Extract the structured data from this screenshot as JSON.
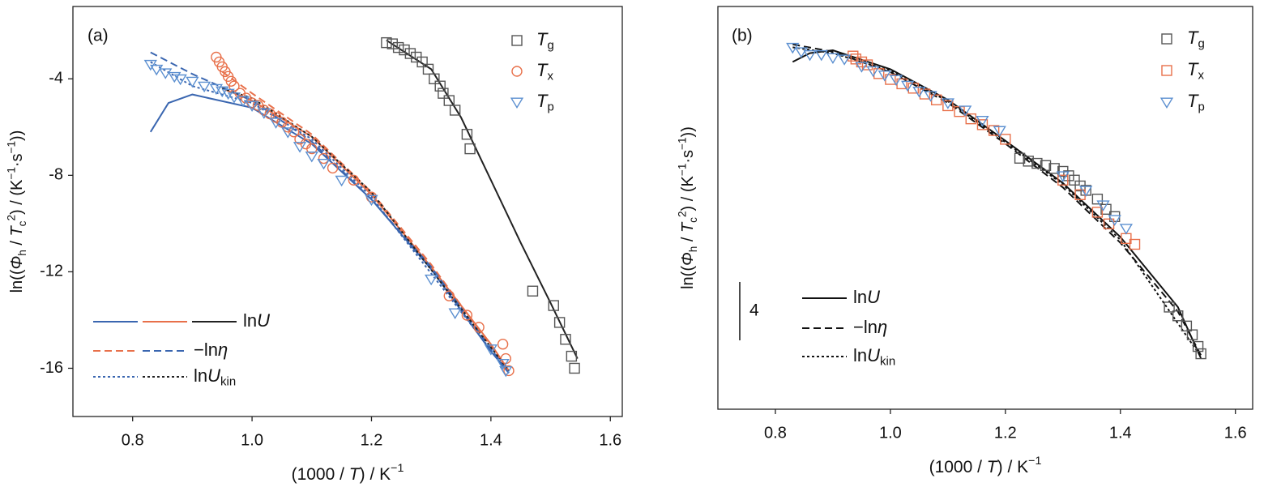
{
  "chart_data": [
    {
      "type": "scatter",
      "label": "(a)",
      "xlabel": [
        [
          "(1000 / ",
          ""
        ],
        [
          "T",
          "i"
        ],
        [
          ") / K",
          ""
        ],
        [
          "−1",
          "sup"
        ]
      ],
      "ylabel": [
        [
          "ln((",
          ""
        ],
        [
          "Φ",
          "i"
        ],
        [
          "h",
          "sub"
        ],
        [
          " / ",
          ""
        ],
        [
          "T",
          "i"
        ],
        [
          "c",
          "sub"
        ],
        [
          "2",
          "sup"
        ],
        [
          ") / (K",
          ""
        ],
        [
          "−1",
          "sup"
        ],
        [
          "·s",
          ""
        ],
        [
          "−1",
          "sup"
        ],
        [
          "))",
          ""
        ]
      ],
      "xlim": [
        0.7,
        1.62
      ],
      "ylim": [
        -18,
        -1
      ],
      "xticks": [
        0.8,
        {
          "value": 1,
          "label": "1.0"
        },
        1.2,
        1.4,
        1.6
      ],
      "yticks": [
        -4,
        -8,
        -12,
        -16
      ],
      "scatter": [
        {
          "name": [
            [
              "T",
              "i"
            ],
            [
              "g",
              "sub"
            ]
          ],
          "marker": "square",
          "color": "#555555",
          "x": [
            1.225,
            1.235,
            1.245,
            1.255,
            1.265,
            1.275,
            1.285,
            1.295,
            1.305,
            1.315,
            1.32,
            1.33,
            1.34,
            1.36,
            1.365,
            1.47,
            1.505,
            1.515,
            1.525,
            1.535,
            1.54
          ],
          "y": [
            -2.5,
            -2.55,
            -2.7,
            -2.8,
            -2.95,
            -3.1,
            -3.3,
            -3.6,
            -4.0,
            -4.3,
            -4.6,
            -4.9,
            -5.3,
            -6.3,
            -6.9,
            -12.8,
            -13.4,
            -14.1,
            -14.8,
            -15.5,
            -16.0
          ]
        },
        {
          "name": [
            [
              "T",
              "i"
            ],
            [
              "x",
              "sub"
            ]
          ],
          "marker": "circle",
          "color": "#e8704a",
          "x": [
            0.94,
            0.945,
            0.95,
            0.955,
            0.96,
            0.965,
            0.97,
            0.98,
            0.99,
            1.0,
            1.01,
            1.02,
            1.03,
            1.04,
            1.05,
            1.06,
            1.07,
            1.08,
            1.09,
            1.1,
            1.12,
            1.135,
            1.17,
            1.2,
            1.33,
            1.36,
            1.38,
            1.42,
            1.425,
            1.43
          ],
          "y": [
            -3.1,
            -3.3,
            -3.5,
            -3.7,
            -3.9,
            -4.1,
            -4.3,
            -4.6,
            -4.8,
            -5.0,
            -5.1,
            -5.3,
            -5.45,
            -5.6,
            -5.8,
            -6.0,
            -6.2,
            -6.5,
            -6.7,
            -6.9,
            -7.3,
            -7.7,
            -8.2,
            -8.9,
            -13.0,
            -13.8,
            -14.3,
            -15.0,
            -15.6,
            -16.1
          ]
        },
        {
          "name": [
            [
              "T",
              "i"
            ],
            [
              "p",
              "sub"
            ]
          ],
          "marker": "triangle",
          "color": "#5b8fd0",
          "x": [
            0.83,
            0.84,
            0.855,
            0.87,
            0.88,
            0.9,
            0.92,
            0.94,
            0.95,
            0.96,
            0.97,
            0.985,
            1.0,
            1.02,
            1.04,
            1.06,
            1.08,
            1.1,
            1.12,
            1.15,
            1.2,
            1.3,
            1.34,
            1.4,
            1.42,
            1.425
          ],
          "y": [
            -3.4,
            -3.6,
            -3.75,
            -3.9,
            -4.0,
            -4.1,
            -4.3,
            -4.4,
            -4.5,
            -4.6,
            -4.75,
            -4.9,
            -5.1,
            -5.4,
            -5.8,
            -6.2,
            -6.8,
            -7.2,
            -7.5,
            -8.2,
            -9.0,
            -12.3,
            -13.7,
            -15.2,
            -15.8,
            -16.1
          ]
        }
      ],
      "line_groups": [
        {
          "name": [
            [
              "ln",
              ""
            ],
            [
              "U",
              "i"
            ]
          ],
          "dash": "solid",
          "lines": [
            {
              "color": "#3a66b0",
              "x": [
                0.83,
                0.86,
                0.9,
                1.0,
                1.1,
                1.2,
                1.3,
                1.4,
                1.43
              ],
              "y": [
                -6.2,
                -5.0,
                -4.65,
                -5.2,
                -6.7,
                -9.0,
                -11.9,
                -15.3,
                -16.2
              ]
            },
            {
              "color": "#e8704a",
              "x": [
                0.95,
                1.0,
                1.1,
                1.2,
                1.3,
                1.4,
                1.43
              ],
              "y": [
                -4.4,
                -4.9,
                -6.4,
                -8.8,
                -11.8,
                -15.0,
                -16.1
              ]
            },
            {
              "color": "#222222",
              "x": [
                1.225,
                1.3,
                1.35,
                1.4,
                1.45,
                1.5,
                1.545
              ],
              "y": [
                -2.4,
                -3.6,
                -5.6,
                -8.2,
                -10.8,
                -13.3,
                -15.6
              ]
            }
          ]
        },
        {
          "name": [
            [
              "−ln",
              ""
            ],
            [
              "η",
              "i"
            ]
          ],
          "dash": "dashed",
          "lines": [
            {
              "color": "#e8704a",
              "x": [
                0.95,
                1.0,
                1.1,
                1.2,
                1.3,
                1.43
              ],
              "y": [
                -3.7,
                -4.6,
                -6.3,
                -8.7,
                -11.7,
                -16.1
              ]
            },
            {
              "color": "#3a66b0",
              "x": [
                0.83,
                0.9,
                1.0,
                1.1,
                1.2,
                1.3,
                1.43
              ],
              "y": [
                -2.9,
                -3.8,
                -4.9,
                -6.6,
                -9.0,
                -11.8,
                -16.2
              ]
            }
          ]
        },
        {
          "name": [
            [
              "ln",
              ""
            ],
            [
              "U",
              "i"
            ],
            [
              "kin",
              "sub"
            ]
          ],
          "dash": "dotted",
          "lines": [
            {
              "color": "#3a66b0",
              "x": [
                0.83,
                0.9,
                1.0,
                1.1,
                1.2,
                1.43
              ],
              "y": [
                -3.3,
                -4.3,
                -5.0,
                -6.5,
                -8.9,
                -16.2
              ]
            },
            {
              "color": "#222222",
              "x": [
                0.95,
                1.0,
                1.1,
                1.2,
                1.43
              ],
              "y": [
                -4.4,
                -4.8,
                -6.4,
                -8.7,
                -16.1
              ]
            }
          ]
        }
      ]
    },
    {
      "type": "scatter",
      "label": "(b)",
      "xlabel": [
        [
          "(1000 / ",
          ""
        ],
        [
          "T",
          "i"
        ],
        [
          ") / K",
          ""
        ],
        [
          "−1",
          "sup"
        ]
      ],
      "ylabel": [
        [
          "ln((",
          ""
        ],
        [
          "Φ",
          "i"
        ],
        [
          "h",
          "sub"
        ],
        [
          " / ",
          ""
        ],
        [
          "T",
          "i"
        ],
        [
          "c",
          "sub"
        ],
        [
          "2",
          "sup"
        ],
        [
          ") / (K",
          ""
        ],
        [
          "−1",
          "sup"
        ],
        [
          "·s",
          ""
        ],
        [
          "−1",
          "sup"
        ],
        [
          "))",
          ""
        ]
      ],
      "xlim": [
        0.7,
        1.63
      ],
      "ylim": [
        -20,
        7.6
      ],
      "xticks": [
        0.8,
        {
          "value": 1,
          "label": "1.0"
        },
        1.2,
        1.4,
        1.6
      ],
      "yticks": [],
      "scale_bar": 4,
      "scatter": [
        {
          "name": [
            [
              "T",
              "i"
            ],
            [
              "g",
              "sub"
            ]
          ],
          "marker": "square",
          "color": "#555555",
          "x": [
            1.225,
            1.24,
            1.255,
            1.27,
            1.285,
            1.3,
            1.31,
            1.32,
            1.33,
            1.34,
            1.36,
            1.375,
            1.39,
            1.485,
            1.5,
            1.515,
            1.525,
            1.535,
            1.54
          ],
          "y": [
            -2.8,
            -3.0,
            -3.15,
            -3.3,
            -3.5,
            -3.7,
            -4.0,
            -4.3,
            -4.7,
            -5.0,
            -5.6,
            -6.3,
            -6.8,
            -13.0,
            -13.6,
            -14.3,
            -14.9,
            -15.7,
            -16.2
          ]
        },
        {
          "name": [
            [
              "T",
              "i"
            ],
            [
              "x",
              "sub"
            ]
          ],
          "marker": "square",
          "color": "#e8704a",
          "x": [
            0.935,
            0.94,
            0.95,
            0.96,
            0.98,
            1.0,
            1.02,
            1.04,
            1.06,
            1.08,
            1.1,
            1.12,
            1.14,
            1.16,
            1.18,
            1.2,
            1.3,
            1.33,
            1.36,
            1.38,
            1.41,
            1.425
          ],
          "y": [
            4.2,
            4.0,
            3.8,
            3.6,
            3.0,
            2.6,
            2.3,
            2.0,
            1.6,
            1.2,
            0.8,
            0.4,
            -0.1,
            -0.5,
            -0.9,
            -1.5,
            -4.3,
            -5.3,
            -6.5,
            -7.3,
            -8.3,
            -8.7
          ]
        },
        {
          "name": [
            [
              "T",
              "i"
            ],
            [
              "p",
              "sub"
            ]
          ],
          "marker": "triangle",
          "color": "#5b8fd0",
          "x": [
            0.83,
            0.845,
            0.86,
            0.88,
            0.9,
            0.92,
            0.95,
            0.97,
            0.99,
            1.01,
            1.03,
            1.05,
            1.07,
            1.1,
            1.13,
            1.16,
            1.19,
            1.3,
            1.34,
            1.37,
            1.39,
            1.41
          ],
          "y": [
            4.8,
            4.5,
            4.3,
            4.3,
            4.1,
            4.0,
            3.5,
            3.2,
            2.9,
            2.6,
            2.2,
            1.8,
            1.5,
            1.0,
            0.5,
            -0.2,
            -0.9,
            -4.0,
            -5.0,
            -6.0,
            -7.0,
            -7.6
          ]
        }
      ],
      "line_groups": [
        {
          "name": [
            [
              "ln",
              ""
            ],
            [
              "U",
              "i"
            ]
          ],
          "dash": "solid",
          "lines": [
            {
              "color": "#111111",
              "x": [
                0.83,
                0.86,
                0.9,
                1.0,
                1.1,
                1.2,
                1.3,
                1.4,
                1.5,
                1.54
              ],
              "y": [
                3.8,
                4.4,
                4.6,
                3.3,
                1.2,
                -1.6,
                -4.5,
                -8.2,
                -13.0,
                -16.5
              ]
            }
          ]
        },
        {
          "name": [
            [
              "−ln",
              ""
            ],
            [
              "η",
              "i"
            ]
          ],
          "dash": "dashed",
          "lines": [
            {
              "color": "#111111",
              "x": [
                0.83,
                0.9,
                1.0,
                1.1,
                1.2,
                1.3,
                1.4,
                1.5,
                1.54
              ],
              "y": [
                5.0,
                4.5,
                3.1,
                1.0,
                -1.8,
                -4.8,
                -8.6,
                -13.3,
                -16.3
              ]
            }
          ]
        },
        {
          "name": [
            [
              "ln",
              ""
            ],
            [
              "U",
              "i"
            ],
            [
              "kin",
              "sub"
            ]
          ],
          "dash": "dotted",
          "lines": [
            {
              "color": "#111111",
              "x": [
                0.83,
                0.9,
                1.0,
                1.1,
                1.2,
                1.3,
                1.4,
                1.54
              ],
              "y": [
                4.8,
                4.4,
                3.2,
                1.1,
                -1.7,
                -4.6,
                -8.4,
                -16.4
              ]
            }
          ]
        }
      ]
    }
  ]
}
